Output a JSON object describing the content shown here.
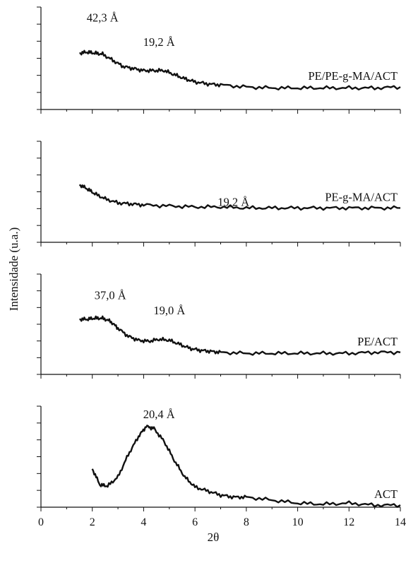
{
  "chart_data": {
    "type": "line",
    "xlabel": "2θ",
    "ylabel": "Intensidade (u.a.)",
    "xlim": [
      0,
      14
    ],
    "xticks": [
      "0",
      "2",
      "4",
      "6",
      "8",
      "10",
      "12",
      "14"
    ],
    "grid": false,
    "panels": [
      {
        "name": "PE/PE-g-MA/ACT",
        "annotations": [
          {
            "text": "42,3 Å",
            "x": 2.4,
            "y": 0.86
          },
          {
            "text": "19,2 Å",
            "x": 4.6,
            "y": 0.62
          }
        ],
        "series": [
          {
            "name": "PE/PE-g-MA/ACT",
            "x": [
              1.5,
              1.8,
              2.1,
              2.4,
              2.8,
              3.2,
              3.6,
              4.0,
              4.4,
              4.8,
              5.2,
              5.6,
              6.0,
              6.5,
              7.0,
              8.0,
              9.0,
              10.0,
              11.0,
              12.0,
              13.0,
              14.0
            ],
            "y": [
              0.55,
              0.56,
              0.55,
              0.54,
              0.48,
              0.42,
              0.4,
              0.38,
              0.38,
              0.38,
              0.34,
              0.3,
              0.27,
              0.25,
              0.24,
              0.22,
              0.21,
              0.21,
              0.21,
              0.21,
              0.21,
              0.22
            ]
          }
        ]
      },
      {
        "name": "PE-g-MA/ACT",
        "annotations": [
          {
            "text": "19,2 Å",
            "x": 7.5,
            "y": 0.36
          }
        ],
        "series": [
          {
            "name": "PE-g-MA/ACT",
            "x": [
              1.5,
              1.8,
              2.1,
              2.5,
              3.0,
              3.5,
              4.0,
              5.0,
              6.0,
              7.0,
              8.0,
              9.0,
              10.0,
              11.0,
              12.0,
              13.0,
              14.0
            ],
            "y": [
              0.57,
              0.53,
              0.48,
              0.43,
              0.39,
              0.38,
              0.37,
              0.36,
              0.35,
              0.35,
              0.34,
              0.34,
              0.34,
              0.34,
              0.34,
              0.34,
              0.34
            ]
          }
        ]
      },
      {
        "name": "PE/ACT",
        "annotations": [
          {
            "text": "37,0 Å",
            "x": 2.7,
            "y": 0.75
          },
          {
            "text": "19,0 Å",
            "x": 5.0,
            "y": 0.6
          }
        ],
        "series": [
          {
            "name": "PE/ACT",
            "x": [
              1.5,
              1.8,
              2.1,
              2.4,
              2.7,
              3.0,
              3.4,
              3.8,
              4.2,
              4.6,
              5.0,
              5.4,
              5.8,
              6.2,
              6.6,
              7.0,
              8.0,
              9.0,
              10.0,
              11.0,
              12.0,
              13.0,
              14.0
            ],
            "y": [
              0.55,
              0.55,
              0.56,
              0.56,
              0.53,
              0.46,
              0.38,
              0.34,
              0.33,
              0.35,
              0.34,
              0.3,
              0.26,
              0.24,
              0.23,
              0.22,
              0.21,
              0.21,
              0.21,
              0.21,
              0.21,
              0.22,
              0.22
            ]
          }
        ]
      },
      {
        "name": "ACT",
        "annotations": [
          {
            "text": "20,4 Å",
            "x": 4.6,
            "y": 0.88
          }
        ],
        "series": [
          {
            "name": "ACT",
            "x": [
              2.0,
              2.3,
              2.6,
              3.0,
              3.4,
              3.8,
              4.1,
              4.4,
              4.8,
              5.2,
              5.6,
              6.0,
              6.5,
              7.0,
              7.5,
              8.0,
              9.0,
              10.0,
              11.0,
              12.0,
              13.0,
              14.0
            ],
            "y": [
              0.38,
              0.22,
              0.21,
              0.3,
              0.52,
              0.7,
              0.8,
              0.78,
              0.65,
              0.46,
              0.3,
              0.2,
              0.16,
              0.12,
              0.1,
              0.1,
              0.07,
              0.04,
              0.03,
              0.04,
              0.02,
              0.02
            ]
          }
        ]
      }
    ]
  }
}
